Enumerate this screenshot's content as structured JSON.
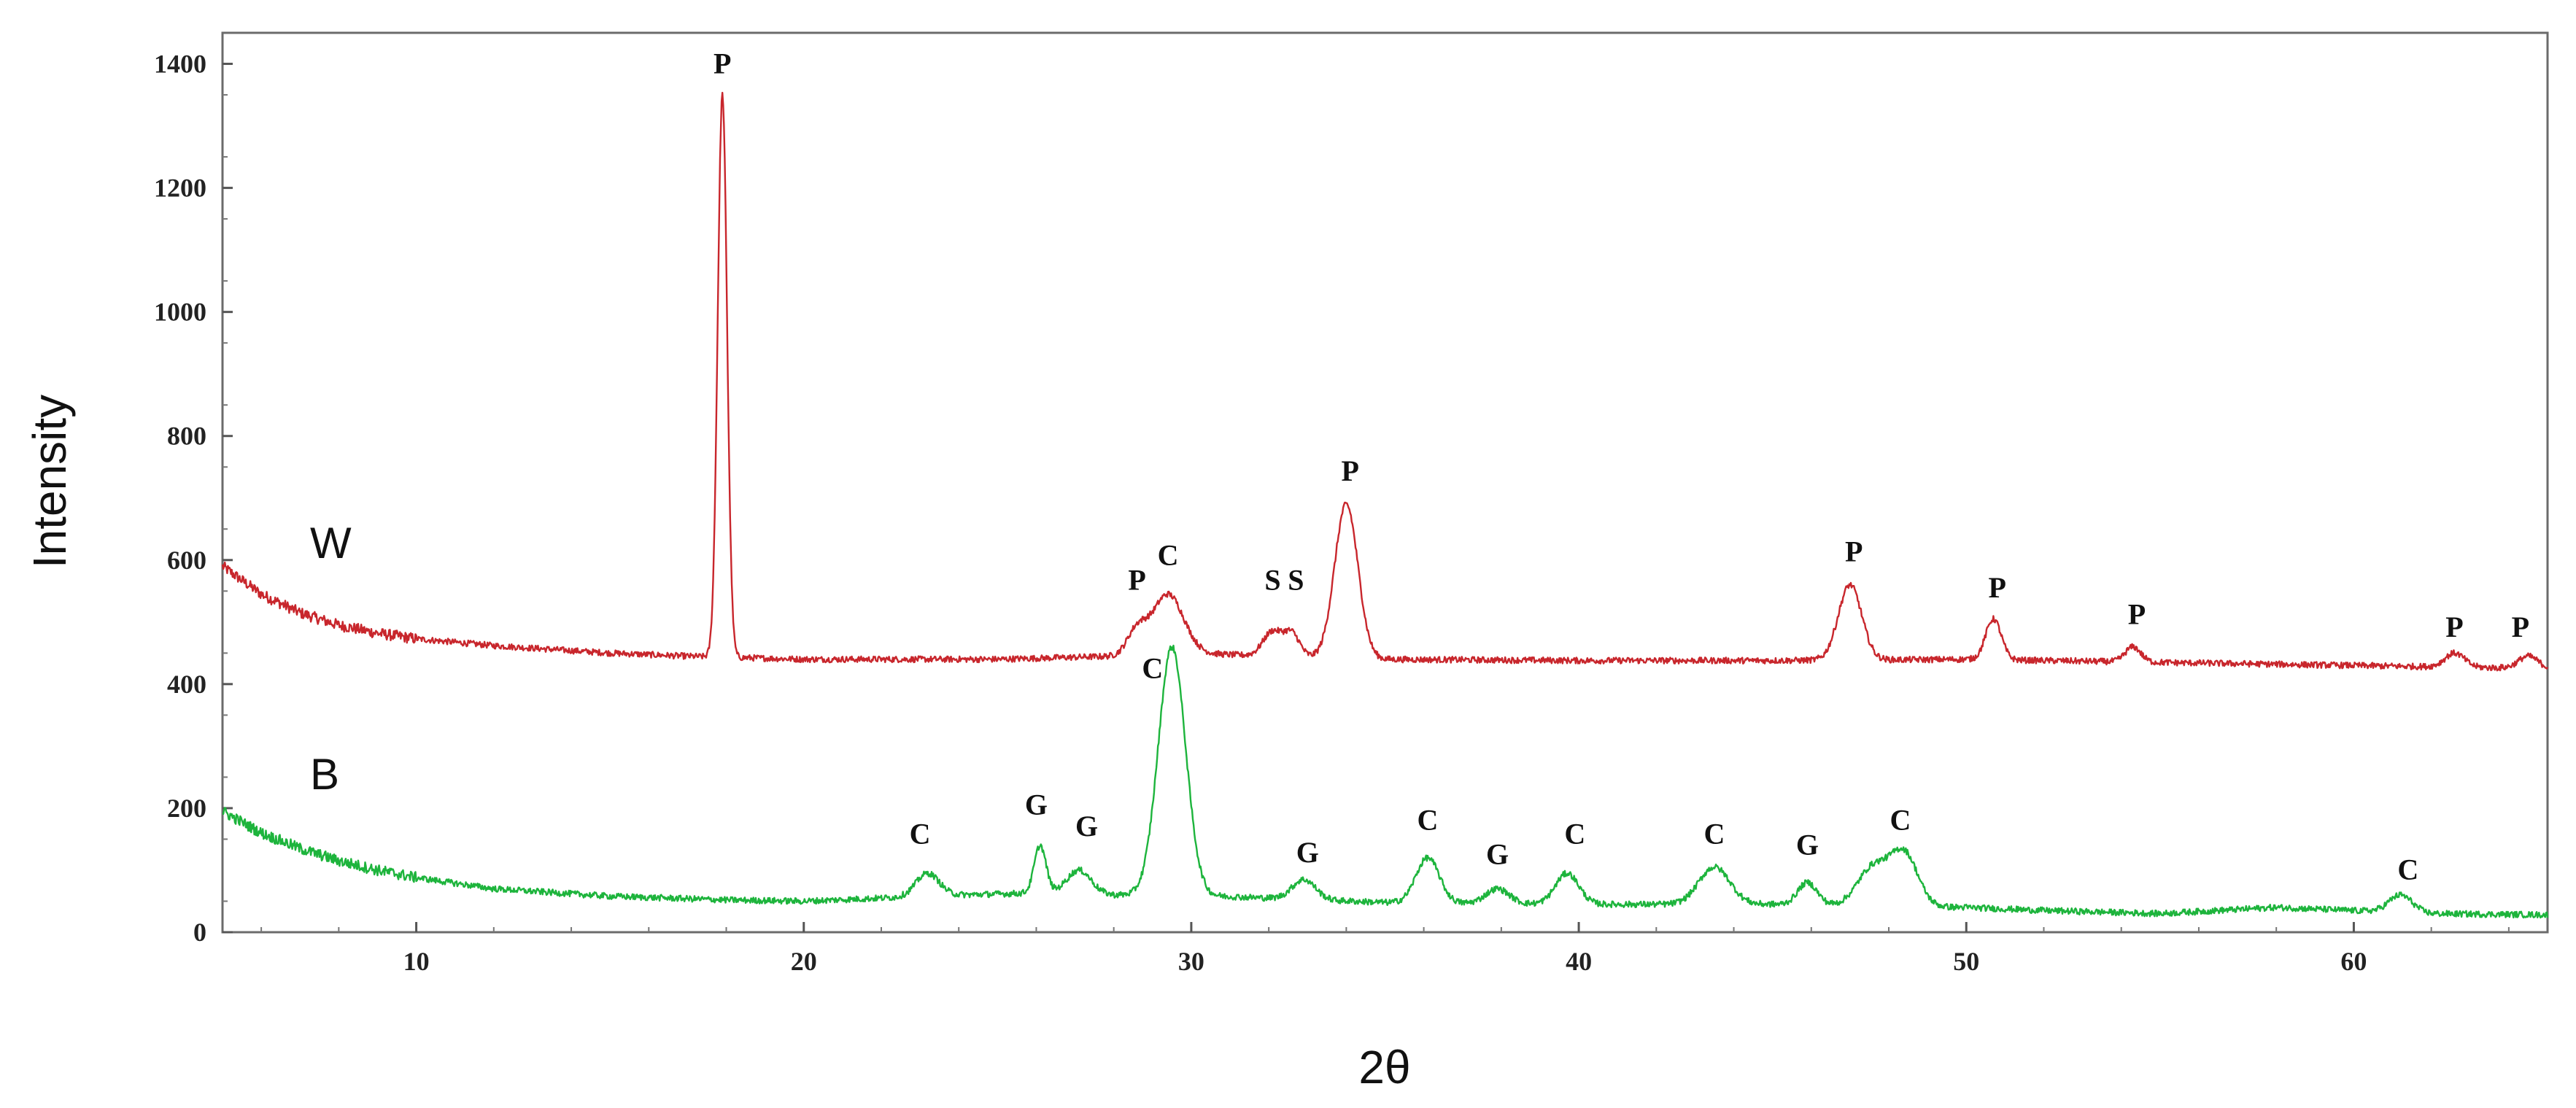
{
  "chart_data": {
    "type": "line",
    "title": "",
    "xlabel": "2θ",
    "ylabel": "Intensity",
    "xlim": [
      5,
      65
    ],
    "ylim": [
      0,
      1450
    ],
    "xticks": [
      10,
      20,
      30,
      40,
      50,
      60
    ],
    "yticks": [
      0,
      200,
      400,
      600,
      800,
      1000,
      1200,
      1400
    ],
    "grid": false,
    "legend": "none",
    "series": [
      {
        "name": "W",
        "color": "#c8262c",
        "baseline": [
          [
            5,
            590
          ],
          [
            6,
            545
          ],
          [
            7,
            515
          ],
          [
            8,
            495
          ],
          [
            9,
            482
          ],
          [
            10,
            473
          ],
          [
            12,
            462
          ],
          [
            15,
            450
          ],
          [
            17,
            445
          ],
          [
            20,
            440
          ],
          [
            25,
            440
          ],
          [
            28,
            445
          ],
          [
            30,
            450
          ],
          [
            32,
            445
          ],
          [
            35,
            440
          ],
          [
            40,
            438
          ],
          [
            45,
            438
          ],
          [
            50,
            440
          ],
          [
            55,
            435
          ],
          [
            60,
            430
          ],
          [
            65,
            425
          ]
        ],
        "peaks": [
          [
            17.9,
            1350,
            0.12
          ],
          [
            28.6,
            485,
            0.25
          ],
          [
            29.4,
            545,
            0.4
          ],
          [
            32.1,
            485,
            0.25
          ],
          [
            32.6,
            480,
            0.2
          ],
          [
            34.0,
            690,
            0.3
          ],
          [
            47.0,
            560,
            0.3
          ],
          [
            50.7,
            505,
            0.2
          ],
          [
            54.3,
            460,
            0.2
          ],
          [
            62.6,
            450,
            0.25
          ],
          [
            64.5,
            445,
            0.25
          ]
        ],
        "labels": [
          {
            "text": "P",
            "x": 17.9,
            "y": 1385
          },
          {
            "text": "P",
            "x": 28.6,
            "y": 552
          },
          {
            "text": "C",
            "x": 29.4,
            "y": 592
          },
          {
            "text": "S",
            "x": 32.1,
            "y": 552
          },
          {
            "text": "S",
            "x": 32.7,
            "y": 552
          },
          {
            "text": "P",
            "x": 34.1,
            "y": 728
          },
          {
            "text": "P",
            "x": 47.1,
            "y": 598
          },
          {
            "text": "P",
            "x": 50.8,
            "y": 540
          },
          {
            "text": "P",
            "x": 54.4,
            "y": 497
          },
          {
            "text": "P",
            "x": 62.6,
            "y": 476
          },
          {
            "text": "P",
            "x": 64.3,
            "y": 476
          }
        ]
      },
      {
        "name": "B",
        "color": "#1db43c",
        "baseline": [
          [
            5,
            195
          ],
          [
            6,
            160
          ],
          [
            7,
            135
          ],
          [
            8,
            115
          ],
          [
            9,
            100
          ],
          [
            10,
            88
          ],
          [
            12,
            70
          ],
          [
            15,
            58
          ],
          [
            18,
            52
          ],
          [
            20,
            50
          ],
          [
            22,
            55
          ],
          [
            24,
            60
          ],
          [
            27,
            65
          ],
          [
            28,
            60
          ],
          [
            30,
            60
          ],
          [
            32,
            55
          ],
          [
            35,
            48
          ],
          [
            40,
            45
          ],
          [
            45,
            45
          ],
          [
            50,
            40
          ],
          [
            52,
            35
          ],
          [
            55,
            30
          ],
          [
            58,
            40
          ],
          [
            60,
            35
          ],
          [
            62,
            30
          ],
          [
            65,
            28
          ]
        ],
        "peaks": [
          [
            23.2,
            95,
            0.3
          ],
          [
            26.1,
            140,
            0.15
          ],
          [
            27.1,
            100,
            0.3
          ],
          [
            29.5,
            460,
            0.35
          ],
          [
            32.9,
            85,
            0.3
          ],
          [
            36.1,
            120,
            0.3
          ],
          [
            37.9,
            70,
            0.3
          ],
          [
            39.7,
            95,
            0.3
          ],
          [
            43.5,
            105,
            0.4
          ],
          [
            45.9,
            80,
            0.25
          ],
          [
            47.6,
            105,
            0.4
          ],
          [
            48.4,
            125,
            0.35
          ],
          [
            61.2,
            60,
            0.3
          ]
        ],
        "labels": [
          {
            "text": "C",
            "x": 29.0,
            "y": 410
          },
          {
            "text": "C",
            "x": 23.0,
            "y": 143
          },
          {
            "text": "G",
            "x": 26.0,
            "y": 190
          },
          {
            "text": "G",
            "x": 27.3,
            "y": 155
          },
          {
            "text": "G",
            "x": 33.0,
            "y": 113
          },
          {
            "text": "C",
            "x": 36.1,
            "y": 165
          },
          {
            "text": "G",
            "x": 37.9,
            "y": 110
          },
          {
            "text": "C",
            "x": 39.9,
            "y": 143
          },
          {
            "text": "C",
            "x": 43.5,
            "y": 143
          },
          {
            "text": "G",
            "x": 45.9,
            "y": 125
          },
          {
            "text": "C",
            "x": 48.3,
            "y": 165
          },
          {
            "text": "C",
            "x": 61.4,
            "y": 85
          }
        ]
      }
    ]
  }
}
